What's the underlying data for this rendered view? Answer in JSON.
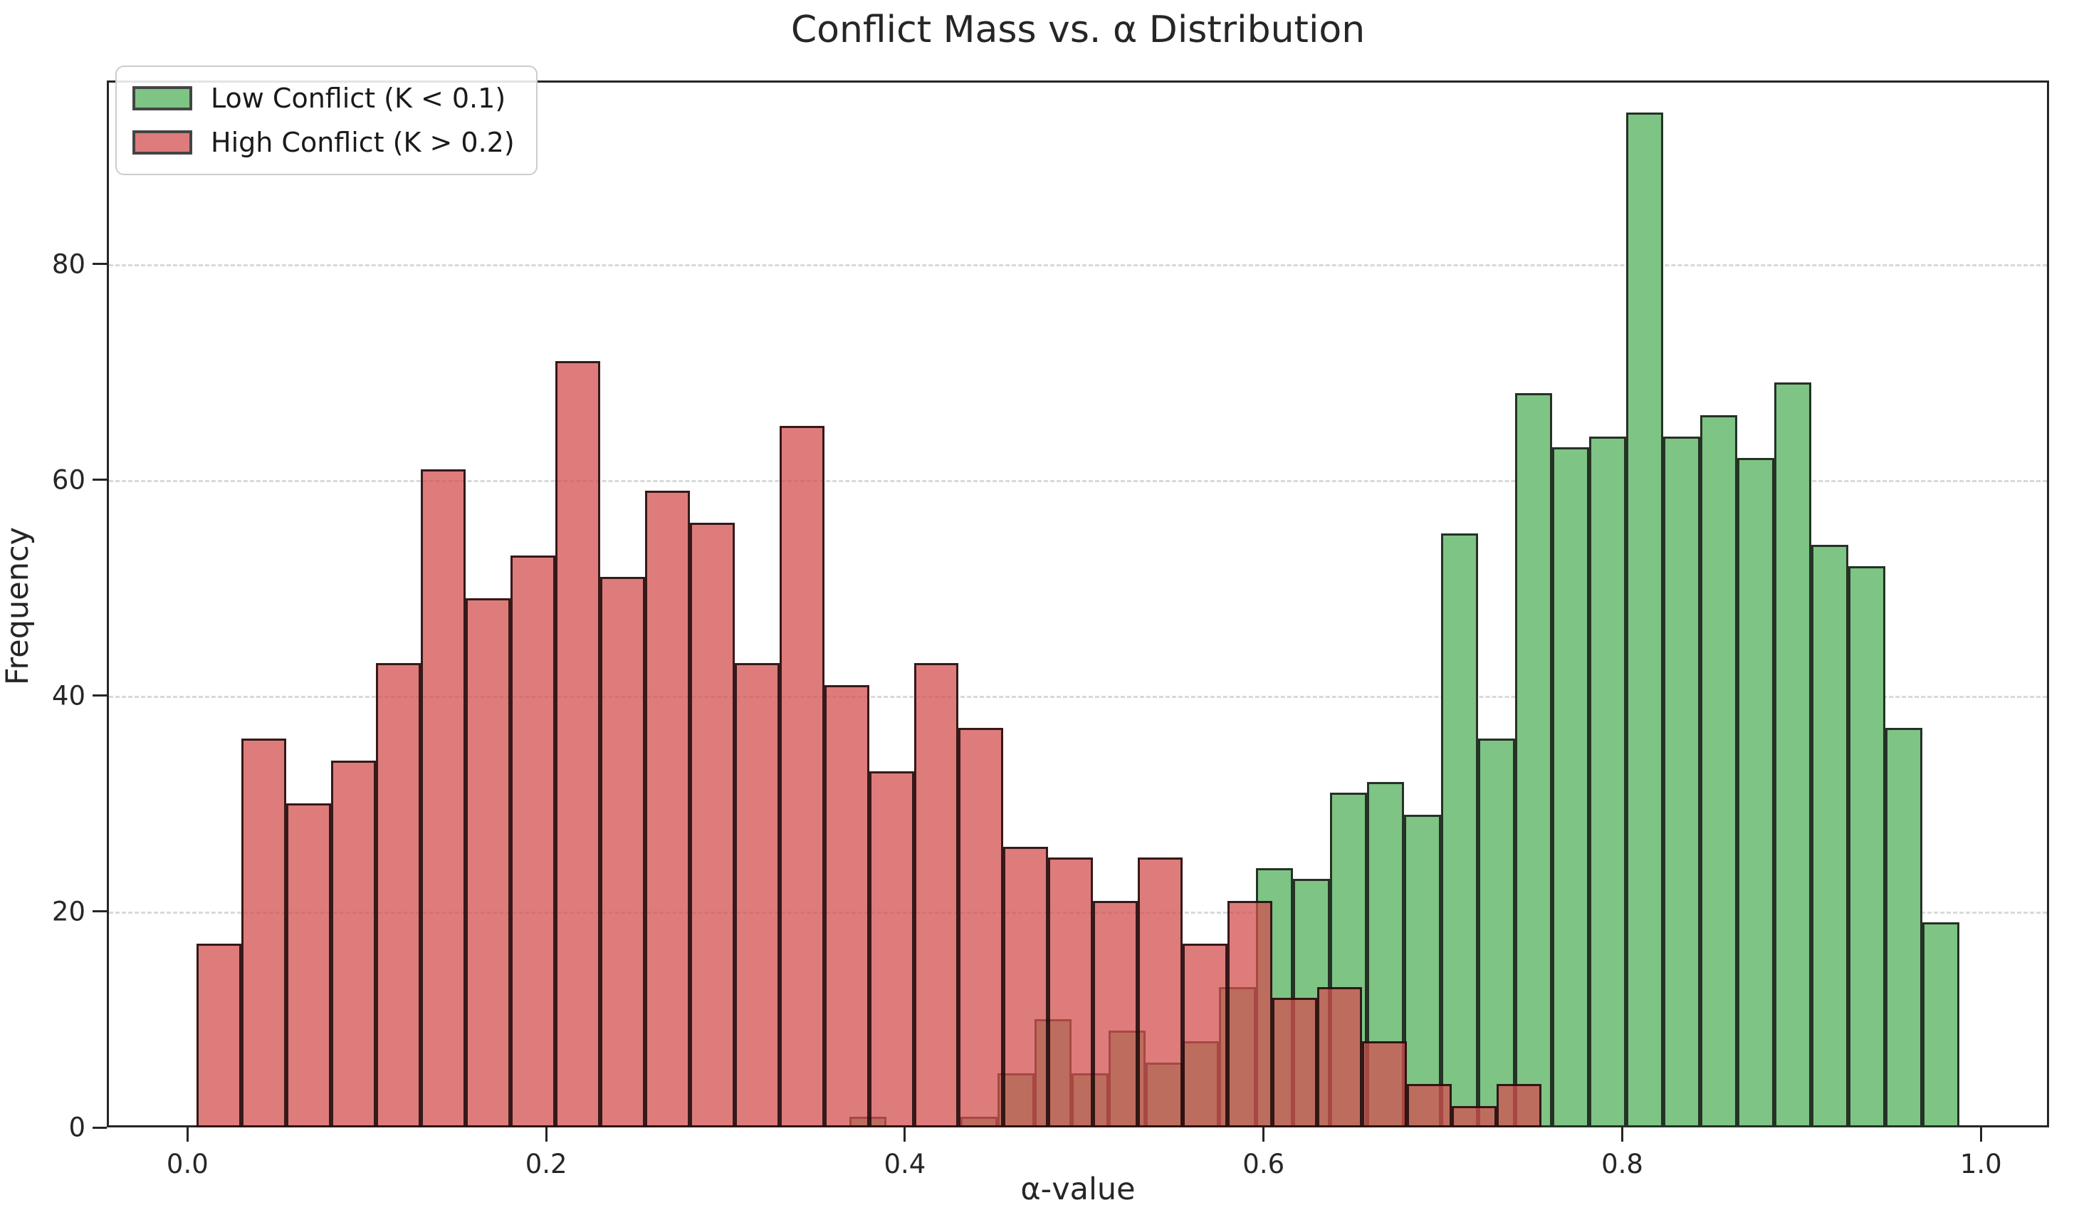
{
  "chart_data": {
    "type": "bar",
    "subtype": "overlaid-histograms",
    "title": "Conflict Mass vs. α Distribution",
    "xlabel": "α-value",
    "ylabel": "Frequency",
    "xlim": [
      -0.045,
      1.038
    ],
    "ylim": [
      0,
      97
    ],
    "xticks": [
      0.0,
      0.2,
      0.4,
      0.6,
      0.8,
      1.0
    ],
    "xtick_labels": [
      "0.0",
      "0.2",
      "0.4",
      "0.6",
      "0.8",
      "1.0"
    ],
    "yticks": [
      0,
      20,
      40,
      60,
      80
    ],
    "ytick_labels": [
      "0",
      "20",
      "40",
      "60",
      "80"
    ],
    "grid": {
      "axis": "y",
      "style": "dashed",
      "color": "#d9d9d9"
    },
    "legend": {
      "position": "upper-left"
    },
    "colors": {
      "low_conflict_fill": "#7ec485",
      "low_conflict_edge": "#253225",
      "high_conflict_fill": "rgba(211,80,80,0.75)",
      "high_conflict_edge": "rgba(25,8,8,0.85)",
      "axis": "#262626",
      "gridline": "#d9d9d9"
    },
    "series": [
      {
        "name": "Low Conflict (K < 0.1)",
        "role": "low-conflict",
        "fill": "#7ec485",
        "edge": "#253225",
        "bin_start": 0.369,
        "bin_width": 0.02063,
        "values": [
          1,
          0,
          0,
          1,
          5,
          10,
          5,
          9,
          6,
          8,
          13,
          24,
          23,
          31,
          32,
          29,
          55,
          36,
          68,
          63,
          64,
          94,
          64,
          66,
          62,
          69,
          54,
          52,
          37,
          19
        ]
      },
      {
        "name": "High Conflict (K > 0.2)",
        "role": "high-conflict",
        "fill": "rgba(211,80,80,0.75)",
        "edge": "rgba(25,8,8,0.85)",
        "bin_start": 0.005,
        "bin_width": 0.025,
        "values": [
          17,
          36,
          30,
          34,
          43,
          61,
          49,
          53,
          71,
          51,
          59,
          56,
          43,
          65,
          41,
          33,
          43,
          37,
          26,
          25,
          21,
          25,
          17,
          21,
          12,
          13,
          8,
          4,
          2,
          4
        ]
      }
    ]
  }
}
